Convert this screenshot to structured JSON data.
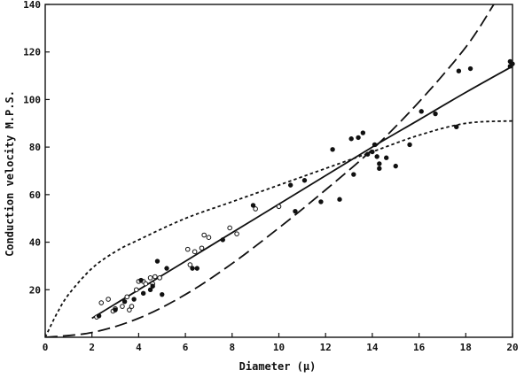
{
  "chart_data": {
    "type": "scatter",
    "title": "",
    "xlabel": "Diameter (μ)",
    "ylabel": "Conduction velocity M.P.S.",
    "xlim": [
      0,
      20
    ],
    "ylim": [
      0,
      140
    ],
    "xticks": [
      "0",
      "2",
      "4",
      "6",
      "8",
      "10",
      "12",
      "14",
      "16",
      "18",
      "20"
    ],
    "yticks": [
      "20",
      "40",
      "60",
      "80",
      "100",
      "120",
      "140"
    ],
    "grid": false,
    "legend": "none",
    "series": [
      {
        "marker": "open-circle",
        "points": [
          [
            2.2,
            8.5
          ],
          [
            2.4,
            14.5
          ],
          [
            2.7,
            16
          ],
          [
            2.9,
            11
          ],
          [
            3.0,
            12
          ],
          [
            3.3,
            13
          ],
          [
            3.5,
            17
          ],
          [
            3.6,
            11.5
          ],
          [
            3.7,
            13
          ],
          [
            3.9,
            20
          ],
          [
            4.0,
            23.5
          ],
          [
            4.2,
            23.5
          ],
          [
            4.3,
            22.5
          ],
          [
            4.5,
            25
          ],
          [
            4.6,
            22.5
          ],
          [
            4.7,
            25.5
          ],
          [
            4.9,
            25
          ],
          [
            6.1,
            37
          ],
          [
            6.2,
            30.5
          ],
          [
            6.4,
            36
          ],
          [
            6.7,
            37.5
          ],
          [
            6.8,
            43
          ],
          [
            7.0,
            42
          ],
          [
            7.9,
            46
          ],
          [
            8.2,
            43.5
          ],
          [
            9.0,
            54
          ],
          [
            10.0,
            55
          ]
        ]
      },
      {
        "marker": "filled-circle",
        "points": [
          [
            2.3,
            9
          ],
          [
            3.0,
            11.5
          ],
          [
            3.4,
            15
          ],
          [
            3.8,
            16
          ],
          [
            4.1,
            24
          ],
          [
            4.2,
            18.5
          ],
          [
            4.5,
            20
          ],
          [
            4.6,
            21.5
          ],
          [
            4.8,
            32
          ],
          [
            5.0,
            18
          ],
          [
            5.2,
            29
          ],
          [
            6.3,
            29
          ],
          [
            6.5,
            29
          ],
          [
            7.6,
            41
          ],
          [
            8.9,
            55.5
          ],
          [
            10.5,
            64
          ],
          [
            10.7,
            53
          ],
          [
            11.1,
            66
          ],
          [
            11.8,
            57
          ],
          [
            12.3,
            79
          ],
          [
            12.6,
            58
          ],
          [
            13.1,
            83.5
          ],
          [
            13.2,
            68.5
          ],
          [
            13.4,
            84
          ],
          [
            13.6,
            86
          ],
          [
            13.8,
            77
          ],
          [
            14.0,
            78
          ],
          [
            14.1,
            81
          ],
          [
            14.2,
            76
          ],
          [
            14.3,
            71
          ],
          [
            14.3,
            73
          ],
          [
            14.6,
            75.5
          ],
          [
            15.0,
            72
          ],
          [
            15.6,
            81
          ],
          [
            16.1,
            95
          ],
          [
            16.7,
            94
          ],
          [
            17.6,
            88.5
          ],
          [
            17.7,
            112
          ],
          [
            18.2,
            113
          ],
          [
            19.9,
            114
          ],
          [
            19.9,
            116
          ],
          [
            20.0,
            115
          ]
        ]
      },
      {
        "style": "solid",
        "points": [
          [
            2,
            8
          ],
          [
            4,
            20
          ],
          [
            6,
            32
          ],
          [
            8,
            44
          ],
          [
            10,
            56
          ],
          [
            12,
            68
          ],
          [
            14,
            80
          ],
          [
            16,
            91.5
          ],
          [
            18,
            103
          ],
          [
            20,
            114
          ]
        ]
      },
      {
        "style": "long-dash",
        "points": [
          [
            0,
            0
          ],
          [
            2,
            2
          ],
          [
            4,
            8
          ],
          [
            6,
            18
          ],
          [
            8,
            31
          ],
          [
            10,
            46
          ],
          [
            12,
            62
          ],
          [
            14,
            79
          ],
          [
            16,
            99
          ],
          [
            18,
            122
          ],
          [
            19.2,
            140
          ]
        ]
      },
      {
        "style": "short-dash",
        "points": [
          [
            0,
            0
          ],
          [
            0.5,
            10
          ],
          [
            1,
            18
          ],
          [
            2,
            29
          ],
          [
            3,
            36
          ],
          [
            4,
            41
          ],
          [
            6,
            50
          ],
          [
            8,
            57
          ],
          [
            10,
            64
          ],
          [
            12,
            71
          ],
          [
            14,
            78
          ],
          [
            16,
            85
          ],
          [
            18,
            90
          ],
          [
            20,
            91
          ]
        ]
      }
    ]
  }
}
